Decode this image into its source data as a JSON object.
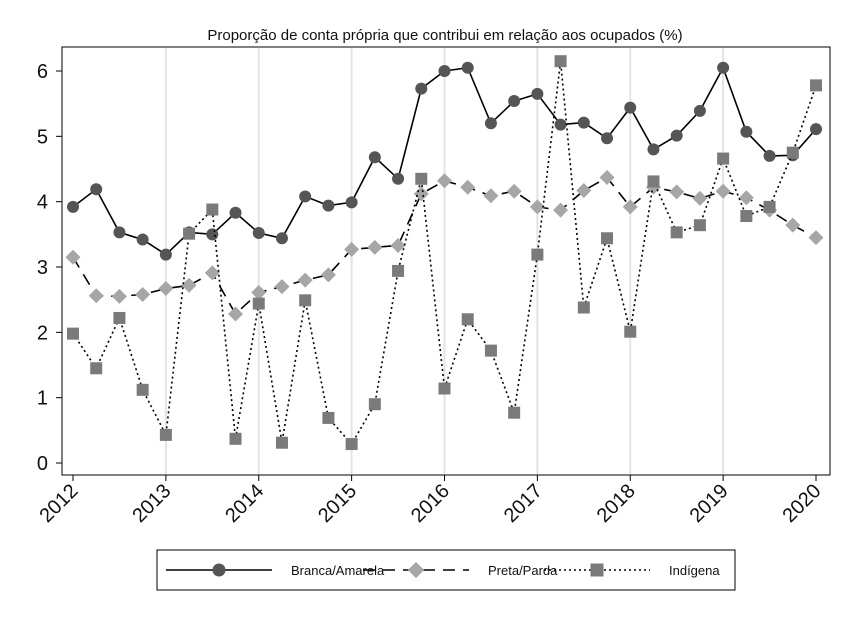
{
  "chart_data": {
    "type": "line",
    "title": "Proporção de conta própria que contribui em relação aos ocupados (%)",
    "xlabel": "",
    "ylabel": "",
    "xlim": [
      2012,
      2020
    ],
    "ylim": [
      0,
      6.3
    ],
    "x_ticks": [
      {
        "value": 2012,
        "label": "2012"
      },
      {
        "value": 2013,
        "label": "2013"
      },
      {
        "value": 2014,
        "label": "2014"
      },
      {
        "value": 2015,
        "label": "2015"
      },
      {
        "value": 2016,
        "label": "2016"
      },
      {
        "value": 2017,
        "label": "2017"
      },
      {
        "value": 2018,
        "label": "2018"
      },
      {
        "value": 2019,
        "label": "2019"
      },
      {
        "value": 2020,
        "label": "2020"
      }
    ],
    "y_ticks": [
      {
        "value": 0,
        "label": "0"
      },
      {
        "value": 1,
        "label": "1"
      },
      {
        "value": 2,
        "label": "2"
      },
      {
        "value": 3,
        "label": "3"
      },
      {
        "value": 4,
        "label": "4"
      },
      {
        "value": 5,
        "label": "5"
      },
      {
        "value": 6,
        "label": "6"
      }
    ],
    "grid": "vertical",
    "legend_position": "bottom",
    "x": [
      2012,
      2012.25,
      2012.5,
      2012.75,
      2013,
      2013.25,
      2013.5,
      2013.75,
      2014,
      2014.25,
      2014.5,
      2014.75,
      2015,
      2015.25,
      2015.5,
      2015.75,
      2016,
      2016.25,
      2016.5,
      2016.75,
      2017,
      2017.25,
      2017.5,
      2017.75,
      2018,
      2018.25,
      2018.5,
      2018.75,
      2019,
      2019.25,
      2019.5,
      2019.75,
      2020
    ],
    "series": [
      {
        "name": "Branca/Amarela",
        "color": "#555555",
        "marker": "circle",
        "dash": "solid",
        "values": [
          3.92,
          4.19,
          3.53,
          3.42,
          3.19,
          3.53,
          3.5,
          3.83,
          3.52,
          3.44,
          4.08,
          3.94,
          3.99,
          4.68,
          4.35,
          5.73,
          6.0,
          6.05,
          5.2,
          5.54,
          5.65,
          5.18,
          5.21,
          4.97,
          5.44,
          4.8,
          5.01,
          5.39,
          6.05,
          5.07,
          4.7,
          4.71,
          5.11
        ]
      },
      {
        "name": "Preta/Parda",
        "color": "#a6a6a6",
        "marker": "diamond",
        "dash": "dashed",
        "values": [
          3.15,
          2.56,
          2.55,
          2.58,
          2.67,
          2.72,
          2.91,
          2.28,
          2.61,
          2.7,
          2.8,
          2.88,
          3.27,
          3.3,
          3.33,
          4.12,
          4.32,
          4.22,
          4.09,
          4.16,
          3.92,
          3.87,
          4.17,
          4.37,
          3.92,
          4.22,
          4.15,
          4.05,
          4.16,
          4.06,
          3.87,
          3.64,
          3.45
        ]
      },
      {
        "name": "Indígena",
        "color": "#7a7a7a",
        "marker": "square",
        "dash": "dotted",
        "values": [
          1.98,
          1.45,
          2.22,
          1.12,
          0.43,
          3.51,
          3.88,
          0.37,
          2.44,
          0.31,
          2.49,
          0.69,
          0.29,
          0.9,
          2.94,
          4.35,
          1.14,
          2.2,
          1.72,
          0.77,
          3.19,
          6.15,
          2.38,
          3.44,
          2.01,
          4.31,
          3.53,
          3.64,
          4.66,
          3.78,
          3.92,
          4.75,
          5.78
        ]
      }
    ]
  }
}
